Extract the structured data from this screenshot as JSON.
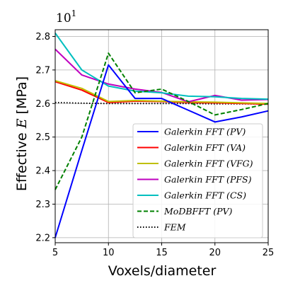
{
  "chart_data": {
    "type": "line",
    "xlabel": "Voxels/diameter",
    "ylabel_prefix": "Effective ",
    "ylabel_symbol": "E",
    "ylabel_suffix": " [MPa]",
    "y_multiplier": {
      "base": "10",
      "exponent": "1"
    },
    "xlim": [
      5,
      25
    ],
    "ylim": [
      2.185,
      2.82
    ],
    "x_ticks": [
      5,
      10,
      15,
      20,
      25
    ],
    "y_ticks": [
      2.2,
      2.3,
      2.4,
      2.5,
      2.6,
      2.7,
      2.8
    ],
    "grid": true,
    "legend_position": "lower-right",
    "series": [
      {
        "name": "Galerkin FFT (PV)",
        "color": "#0000ff",
        "style": "solid",
        "x": [
          5,
          7.5,
          10,
          12.5,
          15,
          17.5,
          20,
          22.5,
          25
        ],
        "y": [
          2.2,
          2.46,
          2.715,
          2.615,
          2.615,
          2.58,
          2.545,
          2.56,
          2.578
        ]
      },
      {
        "name": "Galerkin FFT (VA)",
        "color": "#ff0000",
        "style": "solid",
        "x": [
          5,
          7.5,
          10,
          12.5,
          15,
          17.5,
          20,
          22.5,
          25
        ],
        "y": [
          2.665,
          2.64,
          2.603,
          2.607,
          2.606,
          2.603,
          2.602,
          2.6,
          2.598
        ]
      },
      {
        "name": "Galerkin FFT (VFG)",
        "color": "#bfbf00",
        "style": "solid",
        "x": [
          5,
          7.5,
          10,
          12.5,
          15,
          17.5,
          20,
          22.5,
          25
        ],
        "y": [
          2.668,
          2.645,
          2.606,
          2.609,
          2.607,
          2.605,
          2.604,
          2.602,
          2.6
        ]
      },
      {
        "name": "Galerkin FFT (PFS)",
        "color": "#bf00bf",
        "style": "solid",
        "x": [
          5,
          7.5,
          10,
          12.5,
          15,
          17.5,
          20,
          22.5,
          25
        ],
        "y": [
          2.762,
          2.685,
          2.658,
          2.643,
          2.633,
          2.605,
          2.624,
          2.61,
          2.612
        ]
      },
      {
        "name": "Galerkin FFT (CS)",
        "color": "#00bfbf",
        "style": "solid",
        "x": [
          5,
          7.5,
          10,
          12.5,
          15,
          17.5,
          20,
          22.5,
          25
        ],
        "y": [
          2.81,
          2.7,
          2.652,
          2.637,
          2.632,
          2.622,
          2.62,
          2.615,
          2.613
        ]
      },
      {
        "name": "MoDBFFT (PV)",
        "color": "#008000",
        "style": "dashed",
        "x": [
          5,
          7.5,
          10,
          12.5,
          15,
          17.5,
          20,
          22.5,
          25
        ],
        "y": [
          2.343,
          2.5,
          2.75,
          2.632,
          2.643,
          2.606,
          2.566,
          2.582,
          2.6
        ]
      },
      {
        "name": "FEM",
        "color": "#000000",
        "style": "dotted",
        "x": [
          5,
          7.5,
          10,
          12.5,
          15,
          17.5,
          20,
          22.5,
          25
        ],
        "y": [
          2.603,
          2.601,
          2.6,
          2.6,
          2.6,
          2.6,
          2.599,
          2.599,
          2.599
        ]
      }
    ]
  }
}
